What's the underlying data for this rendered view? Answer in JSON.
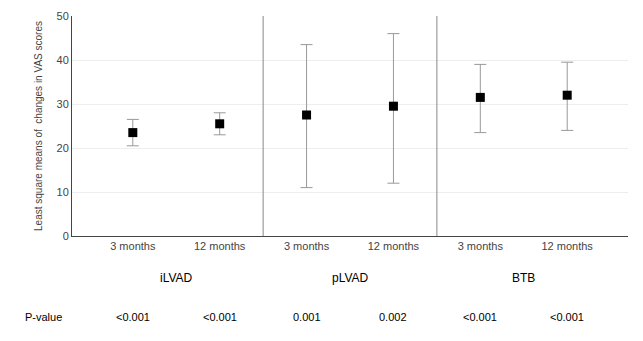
{
  "chart_data": {
    "type": "scatter",
    "ylabel": "Least square means of  changes in VAS scores",
    "categories": [
      "3 months",
      "12 months",
      "3 months",
      "12 months",
      "3 months",
      "12 months"
    ],
    "groups": [
      "iLVAD",
      "pLVAD",
      "BTB"
    ],
    "values": [
      23.5,
      25.5,
      27.5,
      29.5,
      31.5,
      32.0
    ],
    "error_upper": [
      3.0,
      2.5,
      16.0,
      16.5,
      7.5,
      7.5
    ],
    "error_lower": [
      3.0,
      2.5,
      16.5,
      17.5,
      8.0,
      8.0
    ],
    "pvalue_label": "P-value",
    "pvalues": [
      "<0.001",
      "<0.001",
      "0.001",
      "0.002",
      "<0.001",
      "<0.001"
    ],
    "ylim": [
      0,
      50
    ],
    "yticks": [
      0,
      10,
      20,
      30,
      40,
      50
    ],
    "grid": true,
    "marker": "square",
    "color": "#000000"
  }
}
